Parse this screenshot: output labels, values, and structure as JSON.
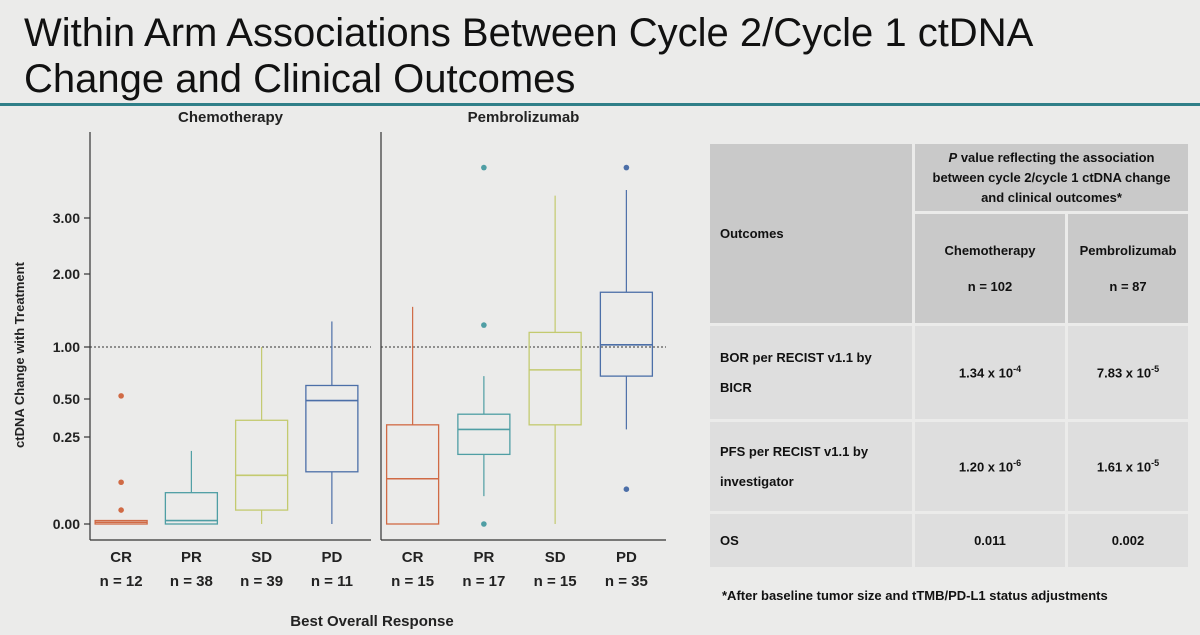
{
  "title": "Within Arm Associations Between Cycle 2/Cycle 1 ctDNA Change and Clinical Outcomes",
  "colors": {
    "accent_rule": "#2f7f88",
    "CR": "#d06a45",
    "PR": "#4f9ea4",
    "SD": "#c3ca6f",
    "PD": "#4c6fa8"
  },
  "chart_data": {
    "type": "box",
    "ylabel": "ctDNA Change with Treatment",
    "xlabel": "Best Overall Response",
    "y_ticks": [
      "0.00",
      "0.25",
      "0.50",
      "1.00",
      "2.00",
      "3.00"
    ],
    "y_scale": "nonlinear (ticks at 0, 0.25, 0.5, 1, 2, 3)",
    "reference_line": 1.0,
    "panels": [
      {
        "name": "Chemotherapy",
        "groups": [
          {
            "label": "CR",
            "n": "n = 12",
            "whisker_low": 0.0,
            "q1": 0.0,
            "median": 0.005,
            "q3": 0.01,
            "whisker_high": 0.01,
            "outliers": [
              0.04,
              0.12,
              0.53
            ]
          },
          {
            "label": "PR",
            "n": "n = 38",
            "whisker_low": 0.0,
            "q1": 0.0,
            "median": 0.01,
            "q3": 0.09,
            "whisker_high": 0.21,
            "outliers": []
          },
          {
            "label": "SD",
            "n": "n = 39",
            "whisker_low": 0.0,
            "q1": 0.04,
            "median": 0.14,
            "q3": 0.36,
            "whisker_high": 1.0,
            "outliers": []
          },
          {
            "label": "PD",
            "n": "n = 11",
            "whisker_low": 0.0,
            "q1": 0.15,
            "median": 0.49,
            "q3": 0.63,
            "whisker_high": 1.35,
            "outliers": []
          }
        ]
      },
      {
        "name": "Pembrolizumab",
        "groups": [
          {
            "label": "CR",
            "n": "n = 15",
            "whisker_low": 0.0,
            "q1": 0.0,
            "median": 0.13,
            "q3": 0.33,
            "whisker_high": 1.55,
            "outliers": []
          },
          {
            "label": "PR",
            "n": "n = 17",
            "whisker_low": 0.08,
            "q1": 0.2,
            "median": 0.3,
            "q3": 0.4,
            "whisker_high": 0.72,
            "outliers": [
              0.0,
              1.3,
              3.9
            ]
          },
          {
            "label": "SD",
            "n": "n = 15",
            "whisker_low": 0.0,
            "q1": 0.33,
            "median": 0.78,
            "q3": 1.2,
            "whisker_high": 3.4,
            "outliers": []
          },
          {
            "label": "PD",
            "n": "n = 35",
            "whisker_low": 0.3,
            "q1": 0.72,
            "median": 1.03,
            "q3": 1.75,
            "whisker_high": 3.5,
            "outliers": [
              0.1,
              3.9
            ]
          }
        ]
      }
    ]
  },
  "table": {
    "outcomes_header": "Outcomes",
    "pvalue_header": "P value reflecting the association between cycle 2/cycle 1 ctDNA change and clinical outcomes*",
    "pvalue_header_italic": "P",
    "pvalue_header_rest": " value reflecting the association between cycle 2/cycle 1 ctDNA change and clinical outcomes*",
    "arm1": {
      "name": "Chemotherapy",
      "n": "n = 102"
    },
    "arm2": {
      "name": "Pembrolizumab",
      "n": "n = 87"
    },
    "rows": [
      {
        "outcome": "BOR per RECIST v1.1 by BICR",
        "chemo_base": "1.34 x 10",
        "chemo_exp": "-4",
        "pembro_base": "7.83 x 10",
        "pembro_exp": "-5"
      },
      {
        "outcome": "PFS per RECIST v1.1 by investigator",
        "chemo_base": "1.20 x 10",
        "chemo_exp": "-6",
        "pembro_base": "1.61 x 10",
        "pembro_exp": "-5"
      },
      {
        "outcome": "OS",
        "chemo_base": "0.011",
        "chemo_exp": "",
        "pembro_base": "0.002",
        "pembro_exp": ""
      }
    ],
    "footnote": "*After baseline tumor size and tTMB/PD-L1 status adjustments"
  }
}
